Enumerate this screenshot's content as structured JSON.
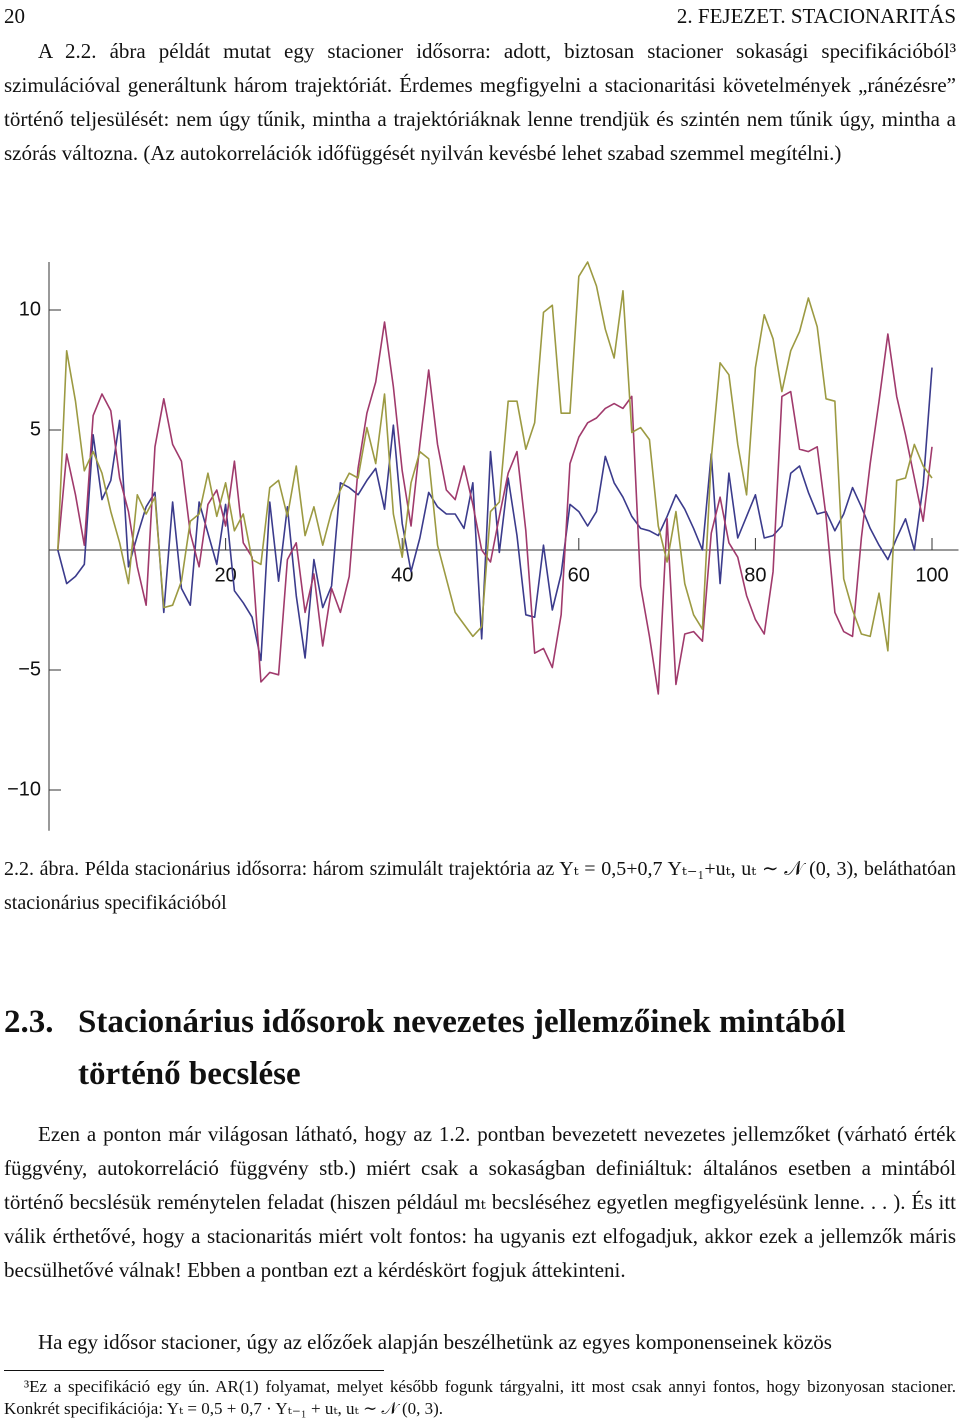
{
  "header": {
    "page_number": "20",
    "chapter": "2. FEJEZET. STACIONARITÁS"
  },
  "paragraph_1": "A 2.2. ábra példát mutat egy stacioner idősorra: adott, biztosan stacioner sokasági specifikációból³ szimulációval generáltunk három trajektóriát. Érdemes megfigyelni a stacionaritási követelmények „ránézésre” történő teljesülését: nem úgy tűnik, mintha a trajektóriáknak lenne trendjük és szintén nem tűnik úgy, mintha a szórás változna. (Az autokorrelációk időfüggését nyilván kevésbé lehet szabad szemmel megítélni.)",
  "chart_data": {
    "type": "line",
    "x": [
      1,
      2,
      3,
      4,
      5,
      6,
      7,
      8,
      9,
      10,
      11,
      12,
      13,
      14,
      15,
      16,
      17,
      18,
      19,
      20,
      21,
      22,
      23,
      24,
      25,
      26,
      27,
      28,
      29,
      30,
      31,
      32,
      33,
      34,
      35,
      36,
      37,
      38,
      39,
      40,
      41,
      42,
      43,
      44,
      45,
      46,
      47,
      48,
      49,
      50,
      51,
      52,
      53,
      54,
      55,
      56,
      57,
      58,
      59,
      60,
      61,
      62,
      63,
      64,
      65,
      66,
      67,
      68,
      69,
      70,
      71,
      72,
      73,
      74,
      75,
      76,
      77,
      78,
      79,
      80,
      81,
      82,
      83,
      84,
      85,
      86,
      87,
      88,
      89,
      90,
      91,
      92,
      93,
      94,
      95,
      96,
      97,
      98,
      99,
      100
    ],
    "series": [
      {
        "color": "#3b3b8c",
        "values": [
          0,
          -1.4,
          -1.1,
          -0.6,
          4.8,
          2.1,
          2.9,
          5.4,
          -0.7,
          0.6,
          1.8,
          2.4,
          -2.6,
          2.0,
          -1.6,
          -2.3,
          2.0,
          0.7,
          -0.6,
          1.9,
          -1.7,
          -2.2,
          -2.8,
          -4.6,
          2.0,
          -1.3,
          1.8,
          -1.9,
          -4.5,
          -0.4,
          -2.4,
          -1.5,
          2.8,
          2.6,
          2.3,
          2.9,
          3.4,
          1.7,
          5.2,
          1.1,
          -0.9,
          0.5,
          2.4,
          1.8,
          1.5,
          1.5,
          0.9,
          2.8,
          -3.7,
          4.1,
          -0.1,
          3.0,
          0.6,
          -2.7,
          -2.8,
          0.2,
          -2.5,
          -1.0,
          1.9,
          1.6,
          1.0,
          1.6,
          3.9,
          2.8,
          2.2,
          1.4,
          0.9,
          0.8,
          0.6,
          1.4,
          2.3,
          1.7,
          0.9,
          0.0,
          4.0,
          -1.4,
          3.2,
          0.5,
          1.4,
          2.3,
          0.5,
          0.6,
          1.0,
          3.2,
          3.5,
          2.4,
          1.5,
          1.6,
          0.8,
          1.5,
          2.6,
          1.8,
          0.9,
          0.2,
          -0.4,
          0.5,
          1.3,
          0.0,
          2.7,
          7.6
        ]
      },
      {
        "color": "#a03a6c",
        "values": [
          0,
          4.0,
          2.3,
          0.2,
          5.6,
          6.5,
          5.8,
          3.0,
          1.6,
          -0.7,
          -2.3,
          4.3,
          6.3,
          4.4,
          3.7,
          0.7,
          -0.7,
          1.9,
          2.5,
          1.0,
          3.7,
          0.3,
          -0.3,
          -5.5,
          -5.1,
          -5.2,
          -0.4,
          0.3,
          -2.6,
          -1.0,
          -4.0,
          -1.6,
          -2.6,
          -1.1,
          3.4,
          5.7,
          7.0,
          9.5,
          6.8,
          3.3,
          1.0,
          4.4,
          7.5,
          4.4,
          2.5,
          2.1,
          3.5,
          1.9,
          0.0,
          -0.5,
          1.4,
          3.2,
          4.1,
          0.8,
          -4.3,
          -4.1,
          -4.9,
          -2.7,
          3.6,
          4.7,
          5.3,
          5.5,
          5.9,
          6.1,
          5.9,
          6.4,
          -1.5,
          -3.6,
          -6.0,
          1.3,
          -5.6,
          -3.5,
          -3.4,
          -3.8,
          0.7,
          2.2,
          0.3,
          -0.3,
          -1.9,
          -2.9,
          -3.5,
          -0.9,
          6.4,
          6.6,
          4.2,
          4.1,
          4.3,
          1.4,
          -2.6,
          -3.4,
          -3.6,
          0.5,
          3.6,
          6.2,
          9.0,
          6.4,
          4.8,
          3.0,
          1.2,
          4.3
        ]
      },
      {
        "color": "#9c9a42",
        "values": [
          0,
          8.3,
          6.2,
          3.3,
          4.1,
          3.2,
          1.6,
          0.3,
          -1.4,
          2.3,
          1.5,
          2.2,
          -2.4,
          -2.3,
          -1.3,
          1.2,
          1.5,
          3.2,
          1.4,
          2.8,
          0.8,
          1.5,
          -0.4,
          -0.6,
          2.6,
          2.9,
          1.4,
          3.5,
          0.6,
          1.8,
          0.2,
          1.6,
          2.5,
          3.2,
          3.0,
          5.1,
          3.6,
          6.5,
          1.5,
          -0.3,
          2.8,
          4.1,
          3.8,
          0.2,
          -1.2,
          -2.6,
          -3.1,
          -3.6,
          -3.2,
          1.6,
          2.0,
          6.2,
          6.2,
          4.2,
          5.3,
          9.9,
          10.2,
          5.7,
          5.7,
          11.4,
          12.0,
          11.0,
          9.2,
          8.0,
          10.8,
          4.9,
          5.1,
          4.6,
          1.0,
          -0.5,
          1.6,
          -1.4,
          -2.7,
          -3.3,
          3.8,
          7.8,
          7.3,
          4.4,
          2.3,
          7.6,
          9.8,
          8.8,
          6.6,
          8.3,
          9.1,
          10.5,
          9.3,
          6.3,
          6.2,
          -1.2,
          -2.5,
          -3.5,
          -3.6,
          -1.8,
          -4.2,
          2.9,
          3.0,
          4.4,
          3.5,
          3.0
        ]
      }
    ],
    "xlim": [
      0,
      103
    ],
    "ylim": [
      -11.7,
      12
    ],
    "xticks": [
      20,
      40,
      60,
      80,
      100
    ],
    "yticks": [
      {
        "value": -10,
        "label": "−10"
      },
      {
        "value": -5,
        "label": "−5"
      },
      5,
      10
    ]
  },
  "caption": {
    "label": "2.2. ábra.",
    "text": "Példa stacionárius idősorra: három szimulált trajektória az Yₜ = 0,5+0,7 Yₜ₋₁+uₜ, uₜ ∼ 𝒩 (0, 3), beláthatóan stacionárius specifikációból"
  },
  "section": {
    "number": "2.3.",
    "title": "Stacionárius idősorok nevezetes jellemzőinek mintából történő becslése"
  },
  "paragraph_2": "Ezen a ponton már világosan látható, hogy az 1.2. pontban bevezetett nevezetes jellemzőket (várható érték függvény, autokorreláció függvény stb.) miért csak a sokaságban definiáltuk: általános esetben a mintából történő becslésük reménytelen feladat (hiszen például mₜ becsléséhez egyetlen megfigyelésünk lenne. . . ). És itt válik érthetővé, hogy a stacionaritás miért volt fontos: ha ugyanis ezt elfogadjuk, akkor ezek a jellemzők máris becsülhetővé válnak! Ebben a pontban ezt a kérdéskört fogjuk áttekinteni.",
  "paragraph_3": "Ha egy idősor stacioner, úgy az előzőek alapján beszélhetünk az egyes komponenseinek közös",
  "footnote": "³Ez a specifikáció egy ún. AR(1) folyamat, melyet később fogunk tárgyalni, itt most csak annyi fontos, hogy bizonyosan stacioner. Konkrét specifikációja: Yₜ = 0,5 + 0,7 · Yₜ₋₁ + uₜ, uₜ ∼ 𝒩 (0, 3)."
}
